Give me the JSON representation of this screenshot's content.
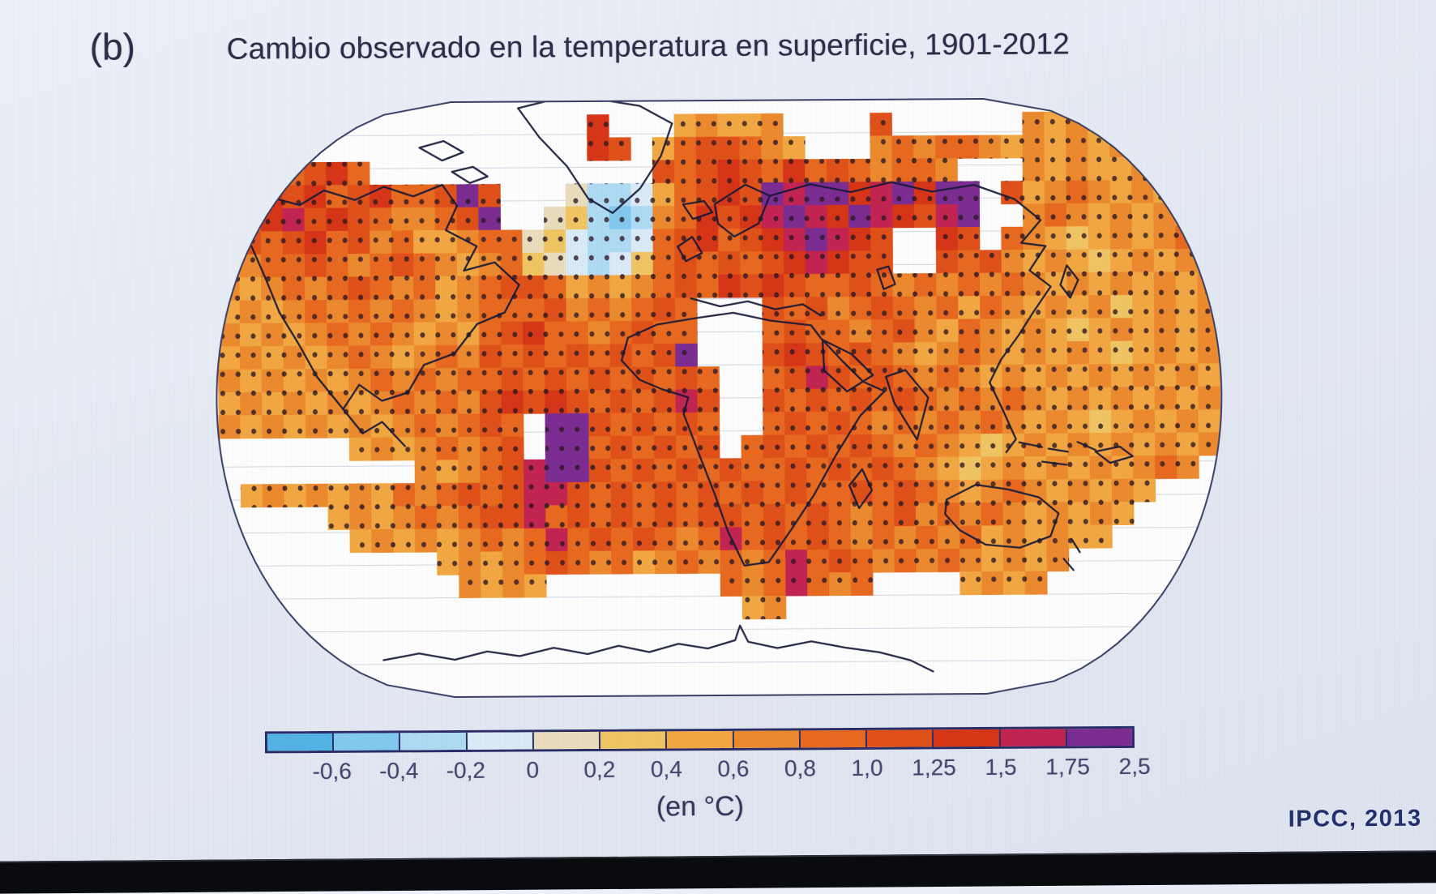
{
  "figure": {
    "panel_label": "(b)",
    "title": "Cambio observado en la temperatura en superficie, 1901-2012",
    "source": "IPCC, 2013"
  },
  "legend": {
    "unit_label": "(en °C)",
    "tick_labels": [
      "-0,6",
      "-0,4",
      "-0,2",
      "0",
      "0,2",
      "0,4",
      "0,6",
      "0,8",
      "1,0",
      "1,25",
      "1,5",
      "1,75",
      "2,5"
    ],
    "cell_colors": [
      "#55b4e6",
      "#84caef",
      "#b0dcf4",
      "#dcecf8",
      "#ecdfbe",
      "#f2c664",
      "#f3a843",
      "#ee8b2e",
      "#e96a20",
      "#e2511a",
      "#d93618",
      "#c42451",
      "#7c2d92"
    ]
  },
  "map": {
    "type": "heatmap",
    "projection": "robinson",
    "no_data_color": "#ffffff",
    "frame_color": "#3a4065",
    "gridline_color": "#c9cfdd",
    "stipple_dot_color": "#2b1722",
    "palette": {
      "b": "#84caef",
      "c": "#b0dcf4",
      "d": "#dcecf8",
      "e": "#ecdfbe",
      "f": "#f2c664",
      "g": "#f3a843",
      "h": "#ee8b2e",
      "i": "#e96a20",
      "j": "#e2511a",
      "k": "#d93618",
      "m": "#c42451",
      "n": "#7c2d92"
    },
    "cols": 46,
    "rows": 24,
    "grid_rows": [
      "..............................................",
      ".................k...ghggh....j......hghg.....",
      ".................kj.gijjihg...hihiihghghgh....",
      ".kjijki.............jijkjikijihiih...hghggh...",
      ".mkjkijkiijnj...eccdgijkjnmnnkmnknn.jghihghg..",
      "jikmjkjihhijn..efcbchikjkmnmknmkjmn..hihghghg.",
      "ijijkijhigghiiefdccdijkijkmnmkj..kj.ihgfghghi.",
      "ghiijihijihghifedcdfijijijkmkjj..jijhghgfghghg",
      "hghihijihighijjighghijikjkjiijihihihihghghghgh",
      "ghghihihihghiiijhihiji...jijhijihigihghghfghgh",
      "hghghihihghgijkiihijii...ijiihijhgihghgfghghgh",
      "ghghghihghihjijijijijn...jkjijihghihghghgfghgh",
      "hghghghihihiijijijijiji..ijmjijihihghghghghghg",
      "ghghghghihihjkjkjijijmj..jijijijihihihghghghgh",
      "hghghghghihiji.nnjijiji..ijijihihihihghgfghghg",
      "......ghghihij.nnijijij.ijijijihihgfghghghghgh",
      ".........hghijmnnjijijijiijijijihgfghghghghih.",
      ".ghghghgihijijmmjijijijijijiijijihghihghghg...",
      ".....ghghihijjmijijijijjijijihijhihihghghg....",
      "......ghghghihimijijihimijijihihihighghgg.....",
      "..........ghghijihighihihimijihihihghgh.......",
      "...........hghg........ihimihi....ghgh........",
      "........................gh....................",
      ".............................................."
    ]
  }
}
